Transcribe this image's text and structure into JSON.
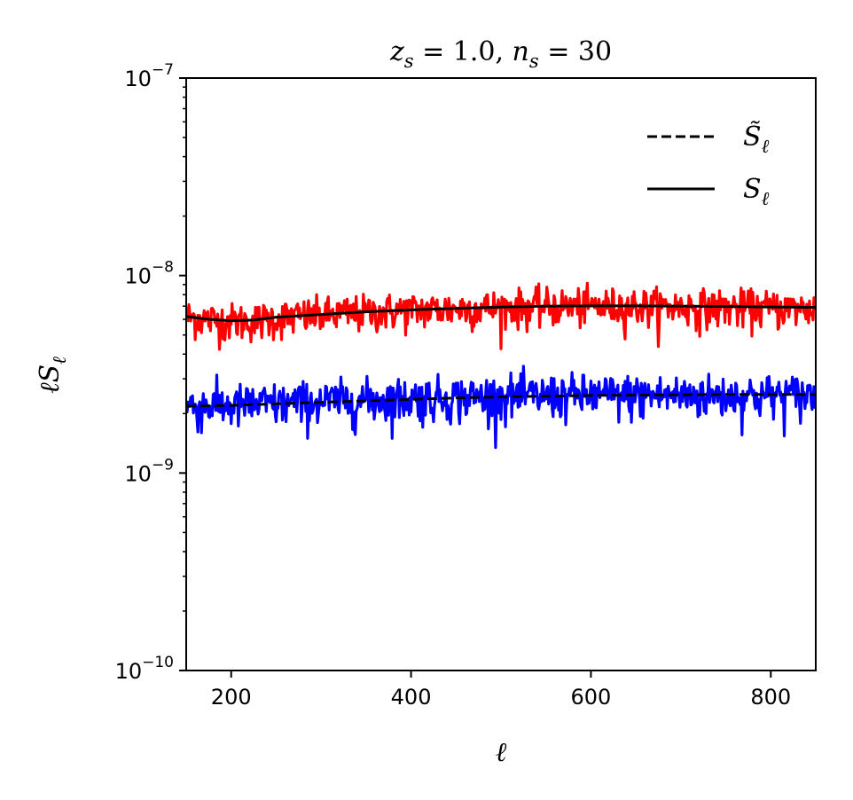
{
  "chart_data": {
    "type": "line",
    "title": "z_s = 1.0, n_s = 30",
    "title_parts": {
      "z": "z",
      "z_sub": "s",
      "z_val": " = 1.0, ",
      "n": "n",
      "n_sub": "s",
      "n_val": " = 30"
    },
    "xlabel": "ℓ",
    "ylabel": "ℓS_ℓ",
    "ylabel_parts": {
      "main": "ℓS",
      "sub": "ℓ"
    },
    "xlim": [
      150,
      850
    ],
    "ylim": [
      1e-10,
      1e-07
    ],
    "yscale": "log",
    "x_ticks": [
      200,
      400,
      600,
      800
    ],
    "x_tick_labels": [
      "200",
      "400",
      "600",
      "800"
    ],
    "y_ticks": [
      {
        "value": 1e-10,
        "base": "10",
        "exp": "−10"
      },
      {
        "value": 1e-09,
        "base": "10",
        "exp": "−9"
      },
      {
        "value": 1e-08,
        "base": "10",
        "exp": "−8"
      },
      {
        "value": 1e-07,
        "base": "10",
        "exp": "−7"
      }
    ],
    "legend": {
      "position": "top-right",
      "entries": [
        {
          "label": "S̃_ℓ",
          "main": "S̃",
          "sub": "ℓ",
          "style": "dashed",
          "color": "#000000"
        },
        {
          "label": "S_ℓ",
          "main": "S",
          "sub": "ℓ",
          "style": "solid",
          "color": "#000000"
        }
      ]
    },
    "series": [
      {
        "role": "measured upper (noisy)",
        "color": "#ff0000",
        "noisy": true,
        "x": [
          150,
          175,
          200,
          225,
          250,
          300,
          350,
          400,
          450,
          500,
          550,
          600,
          650,
          700,
          750,
          800,
          850
        ],
        "y": [
          6.2e-09,
          6e-09,
          5.9e-09,
          5.9e-09,
          6.1e-09,
          6.3e-09,
          6.5e-09,
          6.7e-09,
          6.8e-09,
          6.9e-09,
          7e-09,
          7e-09,
          7e-09,
          6.95e-09,
          6.9e-09,
          6.85e-09,
          6.8e-09
        ],
        "noise_fraction": 0.11
      },
      {
        "role": "measured lower (noisy)",
        "color": "#0000ff",
        "noisy": true,
        "x": [
          150,
          200,
          250,
          300,
          350,
          400,
          450,
          500,
          550,
          600,
          650,
          700,
          750,
          800,
          850
        ],
        "y": [
          2.2e-09,
          2.2e-09,
          2.25e-09,
          2.3e-09,
          2.35e-09,
          2.4e-09,
          2.42e-09,
          2.45e-09,
          2.47e-09,
          2.48e-09,
          2.48e-09,
          2.48e-09,
          2.48e-09,
          2.48e-09,
          2.48e-09
        ],
        "noise_fraction": 0.13
      },
      {
        "role": "S_ℓ",
        "color": "#000000",
        "style": "solid",
        "x": [
          150,
          175,
          200,
          225,
          250,
          300,
          350,
          400,
          450,
          500,
          550,
          600,
          650,
          700,
          750,
          800,
          850
        ],
        "y": [
          6.2e-09,
          6e-09,
          5.9e-09,
          5.95e-09,
          6.15e-09,
          6.35e-09,
          6.55e-09,
          6.7e-09,
          6.82e-09,
          6.92e-09,
          7e-09,
          7.02e-09,
          7.02e-09,
          7e-09,
          6.97e-09,
          6.93e-09,
          6.9e-09
        ]
      },
      {
        "role": "S̃_ℓ",
        "color": "#000000",
        "style": "dashed",
        "x": [
          150,
          200,
          250,
          300,
          350,
          400,
          450,
          500,
          550,
          600,
          650,
          700,
          750,
          800,
          850
        ],
        "y": [
          2.18e-09,
          2.2e-09,
          2.24e-09,
          2.28e-09,
          2.32e-09,
          2.36e-09,
          2.4e-09,
          2.43e-09,
          2.45e-09,
          2.47e-09,
          2.48e-09,
          2.49e-09,
          2.5e-09,
          2.5e-09,
          2.5e-09
        ]
      }
    ],
    "grid": false
  }
}
